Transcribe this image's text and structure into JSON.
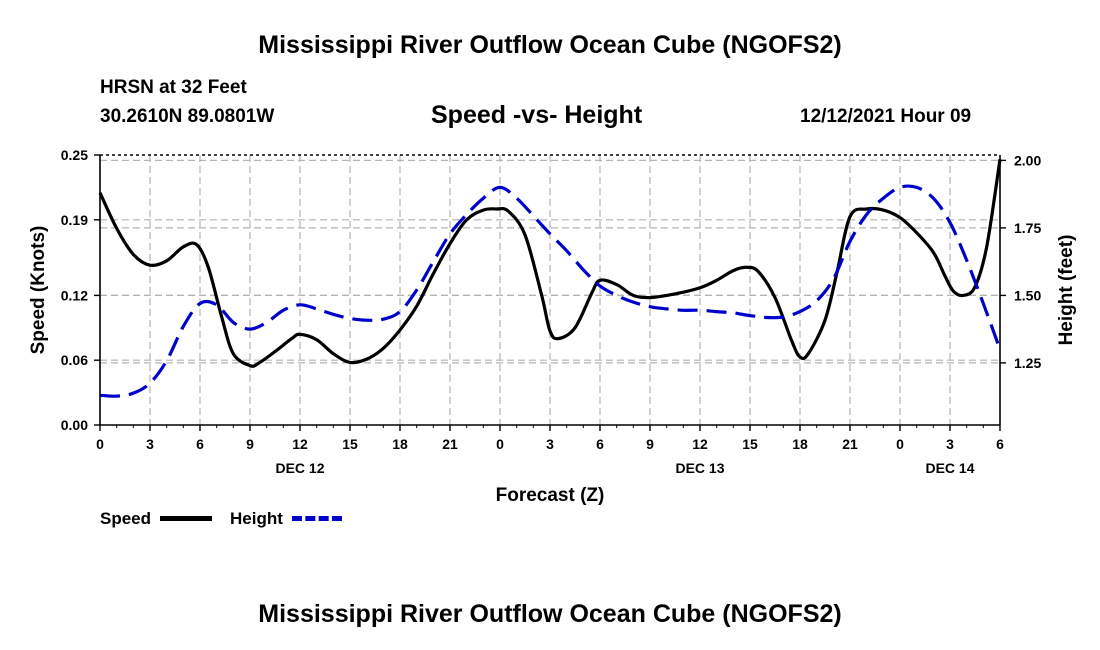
{
  "page": {
    "title": "Mississippi River Outflow Ocean Cube (NGOFS2)",
    "title_repeat": "Mississippi River Outflow Ocean Cube (NGOFS2)",
    "station": "HRSN at 32 Feet",
    "coords": "30.2610N  89.0801W",
    "chart_title": "Speed -vs- Height",
    "timestamp": "12/12/2021 Hour 09"
  },
  "legend": {
    "speed_label": "Speed",
    "height_label": "Height"
  },
  "chart_data": {
    "type": "line",
    "title": "Speed -vs- Height",
    "xlabel": "Forecast (Z)",
    "ylabel": "Speed (Knots)",
    "y2label": "Height (feet)",
    "xlim": [
      0,
      54
    ],
    "ylim": [
      0,
      0.25
    ],
    "y2lim": [
      1.02,
      2.02
    ],
    "x_ticks": [
      0,
      3,
      6,
      9,
      12,
      15,
      18,
      21,
      24,
      27,
      30,
      33,
      36,
      39,
      42,
      45,
      48,
      51,
      54
    ],
    "x_tick_labels": [
      "0",
      "3",
      "6",
      "9",
      "12",
      "15",
      "18",
      "21",
      "0",
      "3",
      "6",
      "9",
      "12",
      "15",
      "18",
      "21",
      "0",
      "3",
      "6"
    ],
    "date_labels": [
      {
        "x": 12,
        "label": "DEC 12"
      },
      {
        "x": 36,
        "label": "DEC 13"
      },
      {
        "x": 51,
        "label": "DEC 14"
      }
    ],
    "y_ticks": [
      0.0,
      0.06,
      0.12,
      0.19,
      0.25
    ],
    "y_tick_labels": [
      "0.00",
      "0.06",
      "0.12",
      "0.19",
      "0.25"
    ],
    "y2_ticks": [
      1.25,
      1.5,
      1.75,
      2.0
    ],
    "y2_tick_labels": [
      "1.25",
      "1.50",
      "1.75",
      "2.00"
    ],
    "grid": true,
    "legend_position": "bottom-left",
    "series": [
      {
        "name": "Speed",
        "axis": "left",
        "color": "#000000",
        "dash": "solid",
        "x": [
          0,
          1,
          2,
          3,
          4,
          5,
          5.8,
          6.5,
          7.3,
          8,
          9,
          9.5,
          10.5,
          11.5,
          12,
          13,
          14,
          15,
          16,
          17,
          18,
          19,
          20,
          21,
          22,
          23,
          23.8,
          24.5,
          25.5,
          26.5,
          27,
          27.5,
          28.5,
          29.5,
          30,
          31,
          32,
          33,
          34,
          35,
          36,
          37,
          38,
          38.8,
          39.5,
          40.5,
          41.5,
          42,
          42.5,
          43.5,
          44.2,
          45,
          46,
          47,
          48,
          49,
          50,
          50.7,
          51.2,
          51.8,
          52.5,
          53.2,
          54
        ],
        "values": [
          0.215,
          0.182,
          0.158,
          0.148,
          0.152,
          0.165,
          0.167,
          0.146,
          0.1,
          0.066,
          0.055,
          0.057,
          0.068,
          0.08,
          0.084,
          0.079,
          0.066,
          0.058,
          0.061,
          0.071,
          0.088,
          0.11,
          0.14,
          0.168,
          0.19,
          0.199,
          0.2,
          0.198,
          0.176,
          0.12,
          0.087,
          0.08,
          0.09,
          0.122,
          0.134,
          0.13,
          0.12,
          0.118,
          0.12,
          0.123,
          0.127,
          0.134,
          0.143,
          0.146,
          0.142,
          0.118,
          0.078,
          0.063,
          0.066,
          0.097,
          0.14,
          0.193,
          0.2,
          0.199,
          0.192,
          0.178,
          0.16,
          0.138,
          0.124,
          0.12,
          0.128,
          0.165,
          0.246
        ]
      },
      {
        "name": "Height",
        "axis": "right",
        "color": "#0000cc",
        "dash": "dashed",
        "x": [
          0,
          1,
          2,
          3,
          4,
          5,
          6,
          7,
          8,
          9,
          10,
          11,
          12,
          13,
          14,
          15,
          16,
          17,
          18,
          19,
          20,
          21,
          22,
          23,
          24,
          25,
          26,
          27,
          28,
          29,
          30,
          31,
          32,
          33,
          34,
          35,
          36,
          37,
          38,
          39,
          40,
          41,
          42,
          43,
          44,
          45,
          46,
          47,
          48,
          49,
          50,
          51,
          52,
          53,
          54
        ],
        "values": [
          1.13,
          1.127,
          1.138,
          1.175,
          1.258,
          1.385,
          1.47,
          1.465,
          1.4,
          1.375,
          1.4,
          1.445,
          1.465,
          1.45,
          1.43,
          1.415,
          1.408,
          1.412,
          1.44,
          1.52,
          1.625,
          1.728,
          1.8,
          1.86,
          1.9,
          1.86,
          1.795,
          1.728,
          1.665,
          1.595,
          1.535,
          1.5,
          1.475,
          1.458,
          1.45,
          1.445,
          1.445,
          1.44,
          1.435,
          1.425,
          1.418,
          1.42,
          1.44,
          1.48,
          1.56,
          1.7,
          1.8,
          1.86,
          1.9,
          1.9,
          1.86,
          1.77,
          1.63,
          1.47,
          1.3
        ]
      }
    ]
  }
}
